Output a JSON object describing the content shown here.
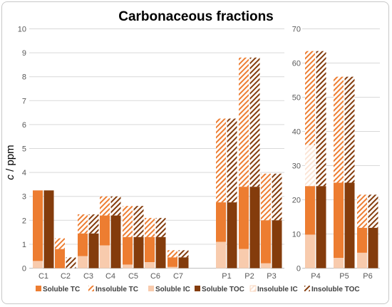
{
  "chart_data": {
    "type": "bar",
    "stacked": true,
    "title": "Carbonaceous fractions",
    "ylabel_italic": "c",
    "ylabel_unit": " / ppm",
    "legend_position": "bottom",
    "grid": true,
    "series_names": [
      "Soluble TC",
      "Insoluble TC",
      "Soluble IC",
      "Soluble TOC",
      "Insoluble IC",
      "Insoluble TOC"
    ],
    "colors": {
      "soluble_tc": "#ed7d31",
      "insoluble_tc_stripe": "#ed7d31",
      "soluble_ic": "#f8cbad",
      "soluble_toc": "#843c0c",
      "insoluble_ic_stripe": "#fbe5d6",
      "insoluble_toc_stripe": "#843c0c",
      "grid": "#d9d9d9",
      "axis": "#bfbfbf"
    },
    "panels": [
      {
        "axis": "left",
        "ylim": [
          0,
          10
        ],
        "yticks": [
          0,
          1,
          2,
          3,
          4,
          5,
          6,
          7,
          8,
          9,
          10
        ],
        "categories": [
          "C1",
          "C2",
          "C3",
          "C4",
          "C5",
          "C6",
          "C7",
          "P1",
          "P2",
          "P3"
        ],
        "bar_a": {
          "soluble_ic": [
            0.3,
            0.0,
            0.5,
            0.95,
            0.15,
            0.25,
            0.05,
            1.1,
            0.8,
            0.2
          ],
          "soluble_tc": [
            3.25,
            0.8,
            1.45,
            2.2,
            1.3,
            1.3,
            0.45,
            2.75,
            3.4,
            2.0
          ],
          "insoluble_ic": [
            0,
            0,
            0,
            0,
            0,
            0,
            0,
            0,
            0.1,
            0
          ],
          "insoluble_tc": [
            3.25,
            1.25,
            2.25,
            3.0,
            2.6,
            2.1,
            0.75,
            6.25,
            8.8,
            3.95
          ]
        },
        "bar_b": {
          "soluble_toc": [
            3.25,
            0.0,
            1.45,
            2.2,
            1.3,
            1.3,
            0.45,
            2.75,
            3.4,
            2.0
          ],
          "insoluble_toc": [
            3.25,
            0.45,
            2.25,
            3.0,
            2.6,
            2.1,
            0.75,
            6.25,
            8.8,
            3.95
          ]
        }
      },
      {
        "axis": "right",
        "ylim": [
          0,
          70
        ],
        "yticks": [
          0,
          10,
          20,
          30,
          40,
          50,
          60,
          70
        ],
        "categories": [
          "P4",
          "P5",
          "P6"
        ],
        "bar_a": {
          "soluble_ic": [
            9.8,
            3.0,
            4.5
          ],
          "soluble_tc": [
            24.0,
            25.0,
            11.8
          ],
          "insoluble_ic": [
            36.0,
            25.0,
            11.8
          ],
          "insoluble_tc": [
            63.5,
            56.0,
            21.5
          ]
        },
        "bar_b": {
          "soluble_toc": [
            24.0,
            25.0,
            11.8
          ],
          "insoluble_toc": [
            63.5,
            56.0,
            21.5
          ]
        }
      }
    ]
  }
}
